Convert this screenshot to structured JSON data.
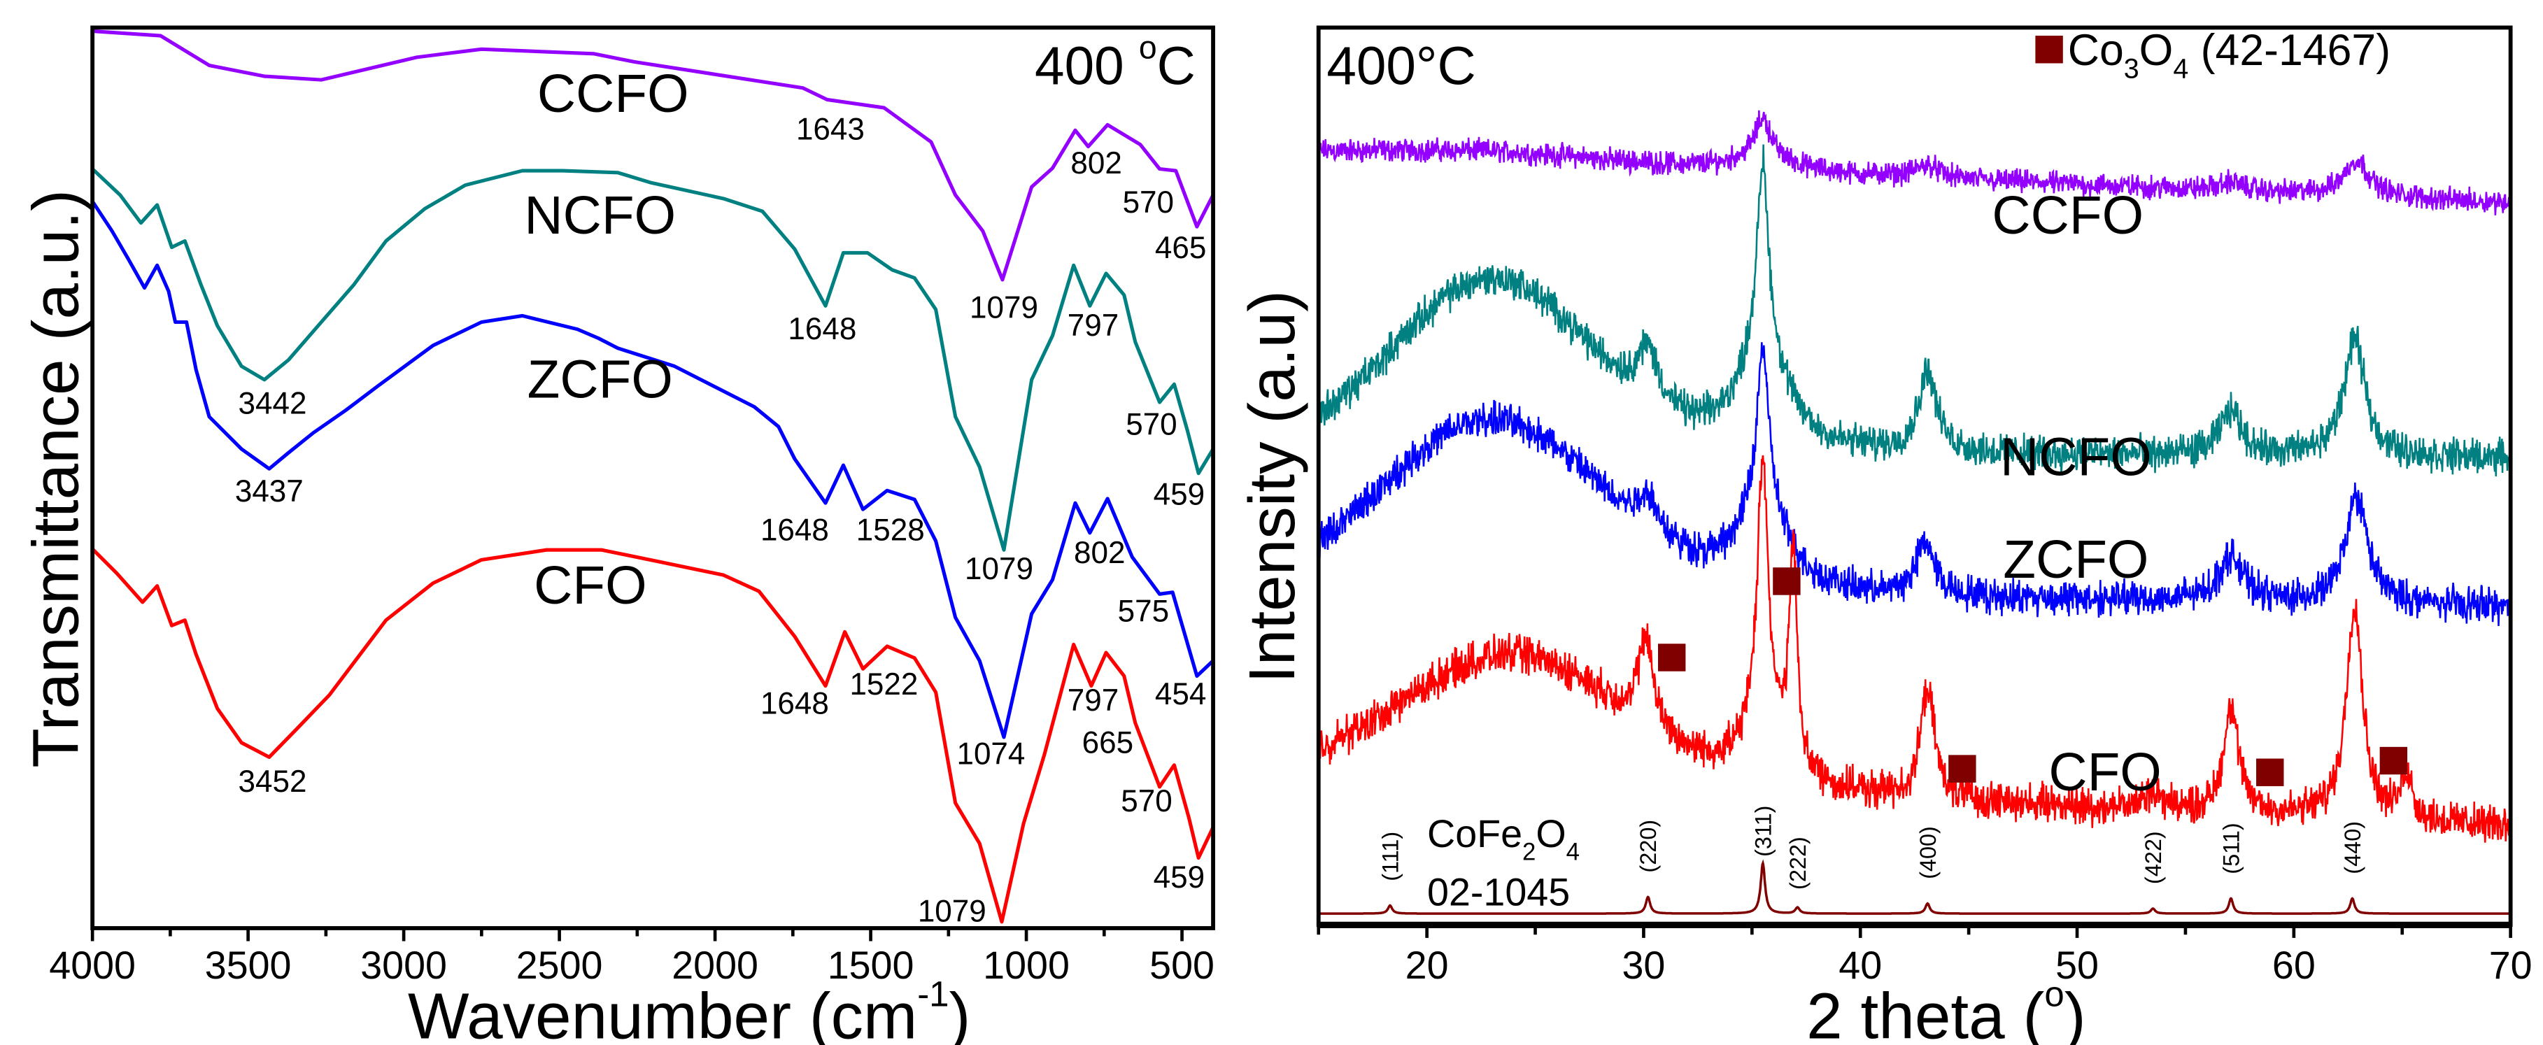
{
  "chart_data": [
    {
      "type": "line",
      "panel": "FTIR",
      "annotation": {
        "main": "400 ",
        "sup": "o",
        "tail": "C"
      },
      "xlabel": {
        "main": "Wavenumber (cm",
        "sup": "-1",
        "tail": ")"
      },
      "ylabel": "Transmittance (a.u.)",
      "xlim": [
        4000,
        400
      ],
      "ylim": [
        0,
        100
      ],
      "xticks": [
        4000,
        3500,
        3000,
        2500,
        2000,
        1500,
        1000,
        500
      ],
      "xtick_labels": [
        "4000",
        "3500",
        "3000",
        "2500",
        "2000",
        "1500",
        "1000",
        "500"
      ],
      "grid": false,
      "series": [
        {
          "name": "CCFO",
          "color": "#9400FF",
          "points": [
            [
              4000,
              99.6
            ],
            [
              3781,
              99.1
            ],
            [
              3625,
              95.8
            ],
            [
              3448,
              94.6
            ],
            [
              3265,
              94.2
            ],
            [
              2958,
              96.7
            ],
            [
              2750,
              97.6
            ],
            [
              2390,
              97.1
            ],
            [
              2260,
              96.2
            ],
            [
              1718,
              93.3
            ],
            [
              1640,
              92.0
            ],
            [
              1457,
              91.1
            ],
            [
              1306,
              87.3
            ],
            [
              1228,
              81.4
            ],
            [
              1140,
              77.4
            ],
            [
              1077,
              72.0
            ],
            [
              983,
              82.3
            ],
            [
              916,
              84.4
            ],
            [
              843,
              88.6
            ],
            [
              801,
              86.8
            ],
            [
              739,
              89.2
            ],
            [
              634,
              87.0
            ],
            [
              572,
              84.3
            ],
            [
              520,
              84.1
            ],
            [
              452,
              77.9
            ],
            [
              400,
              81.4
            ]
          ],
          "peak_labels": [
            "1643",
            "802",
            "570",
            "465"
          ]
        },
        {
          "name": "NCFO",
          "color": "#008080",
          "points": [
            [
              4000,
              84.3
            ],
            [
              3911,
              81.4
            ],
            [
              3844,
              78.3
            ],
            [
              3792,
              80.3
            ],
            [
              3745,
              75.6
            ],
            [
              3703,
              76.3
            ],
            [
              3651,
              71.4
            ],
            [
              3599,
              66.9
            ],
            [
              3521,
              62.4
            ],
            [
              3448,
              60.9
            ],
            [
              3370,
              63.1
            ],
            [
              3265,
              67.3
            ],
            [
              3161,
              71.4
            ],
            [
              3057,
              76.3
            ],
            [
              2932,
              79.9
            ],
            [
              2802,
              82.5
            ],
            [
              2619,
              84.1
            ],
            [
              2489,
              84.1
            ],
            [
              2312,
              83.9
            ],
            [
              2208,
              82.8
            ],
            [
              1973,
              81.0
            ],
            [
              1848,
              79.6
            ],
            [
              1744,
              75.4
            ],
            [
              1645,
              69.1
            ],
            [
              1588,
              75.0
            ],
            [
              1510,
              75.0
            ],
            [
              1431,
              73.1
            ],
            [
              1359,
              72.2
            ],
            [
              1291,
              68.7
            ],
            [
              1228,
              56.8
            ],
            [
              1150,
              51.2
            ],
            [
              1072,
              42.0
            ],
            [
              983,
              60.9
            ],
            [
              916,
              65.8
            ],
            [
              848,
              73.6
            ],
            [
              796,
              69.1
            ],
            [
              744,
              72.7
            ],
            [
              686,
              70.3
            ],
            [
              650,
              65.1
            ],
            [
              572,
              58.4
            ],
            [
              525,
              60.4
            ],
            [
              483,
              55.3
            ],
            [
              447,
              50.5
            ],
            [
              400,
              53.2
            ]
          ],
          "peak_labels": [
            "3442",
            "1648",
            "1079",
            "797",
            "570",
            "459"
          ]
        },
        {
          "name": "ZCFO",
          "color": "#0000FF",
          "points": [
            [
              4000,
              80.7
            ],
            [
              3937,
              77.4
            ],
            [
              3885,
              74.3
            ],
            [
              3833,
              71.1
            ],
            [
              3792,
              73.6
            ],
            [
              3755,
              70.7
            ],
            [
              3734,
              67.3
            ],
            [
              3698,
              67.3
            ],
            [
              3667,
              62.0
            ],
            [
              3625,
              56.8
            ],
            [
              3521,
              53.2
            ],
            [
              3432,
              51.0
            ],
            [
              3370,
              52.8
            ],
            [
              3291,
              55.0
            ],
            [
              3187,
              57.5
            ],
            [
              3083,
              60.2
            ],
            [
              2906,
              64.7
            ],
            [
              2750,
              67.3
            ],
            [
              2619,
              68.0
            ],
            [
              2442,
              66.5
            ],
            [
              2374,
              65.5
            ],
            [
              2312,
              64.4
            ],
            [
              2130,
              62.4
            ],
            [
              1874,
              57.9
            ],
            [
              1796,
              55.7
            ],
            [
              1744,
              52.1
            ],
            [
              1645,
              47.2
            ],
            [
              1588,
              51.4
            ],
            [
              1525,
              46.5
            ],
            [
              1447,
              48.6
            ],
            [
              1359,
              47.6
            ],
            [
              1291,
              43.0
            ],
            [
              1228,
              34.5
            ],
            [
              1150,
              29.7
            ],
            [
              1072,
              21.2
            ],
            [
              983,
              34.9
            ],
            [
              916,
              38.7
            ],
            [
              843,
              47.2
            ],
            [
              796,
              43.9
            ],
            [
              739,
              47.7
            ],
            [
              660,
              41.2
            ],
            [
              572,
              37.1
            ],
            [
              530,
              37.3
            ],
            [
              452,
              28.0
            ],
            [
              400,
              29.7
            ]
          ],
          "peak_labels": [
            "3437",
            "1648",
            "1528",
            "1079",
            "802",
            "575",
            "454"
          ]
        },
        {
          "name": "CFO",
          "color": "#FF0000",
          "points": [
            [
              4000,
              42.1
            ],
            [
              3922,
              39.4
            ],
            [
              3839,
              36.2
            ],
            [
              3792,
              38.0
            ],
            [
              3745,
              33.6
            ],
            [
              3703,
              34.2
            ],
            [
              3667,
              30.4
            ],
            [
              3599,
              24.4
            ],
            [
              3521,
              20.6
            ],
            [
              3432,
              19.0
            ],
            [
              3344,
              22.1
            ],
            [
              3239,
              25.9
            ],
            [
              3057,
              34.2
            ],
            [
              2906,
              38.3
            ],
            [
              2750,
              40.9
            ],
            [
              2541,
              42.0
            ],
            [
              2364,
              42.0
            ],
            [
              2182,
              40.7
            ],
            [
              1973,
              39.2
            ],
            [
              1859,
              37.4
            ],
            [
              1744,
              32.4
            ],
            [
              1645,
              26.9
            ],
            [
              1583,
              32.9
            ],
            [
              1525,
              28.8
            ],
            [
              1447,
              31.3
            ],
            [
              1359,
              30.0
            ],
            [
              1291,
              26.2
            ],
            [
              1228,
              13.9
            ],
            [
              1150,
              9.4
            ],
            [
              1079,
              0.7
            ],
            [
              1009,
              11.6
            ],
            [
              942,
              19.3
            ],
            [
              848,
              31.5
            ],
            [
              791,
              26.9
            ],
            [
              744,
              30.6
            ],
            [
              686,
              28.0
            ],
            [
              650,
              22.8
            ],
            [
              572,
              15.7
            ],
            [
              525,
              18.1
            ],
            [
              478,
              12.3
            ],
            [
              447,
              7.8
            ],
            [
              400,
              11.2
            ]
          ],
          "peak_labels": [
            "3452",
            "1648",
            "1522",
            "1074",
            "797",
            "665",
            "570",
            "459",
            "1079"
          ]
        }
      ]
    },
    {
      "type": "line",
      "panel": "XRD",
      "annotation": "400°C",
      "xlabel": {
        "main": "2 theta (",
        "sup": "o",
        "tail": ")"
      },
      "ylabel": "Intensity (a.u)",
      "xlim": [
        15,
        70
      ],
      "ylim": [
        0,
        100
      ],
      "xticks": [
        20,
        30,
        40,
        50,
        60,
        70
      ],
      "xtick_labels": [
        "20",
        "30",
        "40",
        "50",
        "60",
        "70"
      ],
      "grid": false,
      "legend": {
        "formula": [
          "Co",
          "3",
          "O",
          "4"
        ],
        "card": " (42-1467)",
        "marker_color": "#800000",
        "placement": "top-right"
      },
      "series": [
        {
          "name": "CCFO",
          "color": "#9400FF",
          "baseline": [
            86,
            80.5
          ],
          "hump": [
            23,
            1,
            5
          ],
          "noise": 1.6,
          "peaks": [
            [
              35.5,
              4,
              0.4
            ],
            [
              35.5,
              2,
              1.5
            ],
            [
              43.1,
              1.5,
              0.6
            ],
            [
              57.1,
              1,
              0.6
            ],
            [
              62.9,
              4,
              0.7
            ]
          ]
        },
        {
          "name": "NCFO",
          "color": "#008080",
          "baseline": [
            53,
            52
          ],
          "hump": [
            23,
            19,
            4.5
          ],
          "noise": 2.4,
          "peaks": [
            [
              30.2,
              6,
              0.6
            ],
            [
              35.5,
              20,
              0.3
            ],
            [
              35.5,
              12,
              1.3
            ],
            [
              43.1,
              9,
              0.5
            ],
            [
              57.1,
              5,
              0.6
            ],
            [
              62.8,
              13,
              0.6
            ]
          ]
        },
        {
          "name": "ZCFO",
          "color": "#0000FF",
          "baseline": [
            37.5,
            35.5
          ],
          "hump": [
            23,
            19,
            5
          ],
          "noise": 2.4,
          "peaks": [
            [
              30.2,
              4,
              0.6
            ],
            [
              35.5,
              17,
              0.3
            ],
            [
              35.5,
              10,
              1.3
            ],
            [
              43.0,
              6,
              0.5
            ],
            [
              57.1,
              5,
              0.7
            ],
            [
              62.9,
              12,
              0.6
            ]
          ]
        },
        {
          "name": "CFO",
          "color": "#FF0000",
          "baseline": [
            17,
            11
          ],
          "hump": [
            24,
            14,
            5
          ],
          "noise": 2.6,
          "peaks": [
            [
              30.1,
              10,
              0.4
            ],
            [
              35.5,
              30,
              0.3
            ],
            [
              35.5,
              6,
              1.2
            ],
            [
              36.9,
              24,
              0.22
            ],
            [
              43.1,
              12,
              0.4
            ],
            [
              53.5,
              2,
              0.5
            ],
            [
              57.1,
              12,
              0.4
            ],
            [
              62.8,
              24,
              0.45
            ],
            [
              65.2,
              5,
              0.3
            ]
          ]
        }
      ],
      "co3o4_markers": [
        [
          31.3,
          29.8
        ],
        [
          36.6,
          38.3
        ],
        [
          44.7,
          17.4
        ],
        [
          58.9,
          17.0
        ],
        [
          64.6,
          18.3
        ]
      ],
      "reference": {
        "formula": [
          "CoFe",
          "2",
          "O",
          "4"
        ],
        "card": "02-1045",
        "color": "#800000",
        "peaks": [
          {
            "hkl": "(111)",
            "two_theta": 18.3,
            "rel_intensity": 16
          },
          {
            "hkl": "(220)",
            "two_theta": 30.2,
            "rel_intensity": 33
          },
          {
            "hkl": "(311)",
            "two_theta": 35.5,
            "rel_intensity": 100
          },
          {
            "hkl": "(222)",
            "two_theta": 37.1,
            "rel_intensity": 12
          },
          {
            "hkl": "(400)",
            "two_theta": 43.1,
            "rel_intensity": 20
          },
          {
            "hkl": "(422)",
            "two_theta": 53.5,
            "rel_intensity": 10
          },
          {
            "hkl": "(511)",
            "two_theta": 57.1,
            "rel_intensity": 30
          },
          {
            "hkl": "(440)",
            "two_theta": 62.7,
            "rel_intensity": 30
          }
        ]
      }
    }
  ]
}
